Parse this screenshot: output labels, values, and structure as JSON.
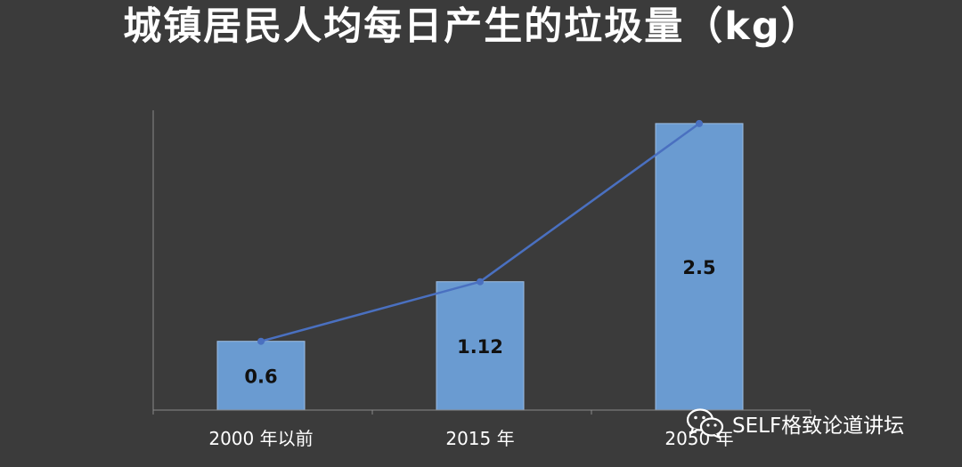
{
  "chart_data": {
    "type": "bar",
    "title": "城镇居民人均每日产生的垃圾量（kg）",
    "categories": [
      "2000 年以前",
      "2015 年",
      "2050 年"
    ],
    "values": [
      0.6,
      1.12,
      2.5
    ],
    "value_labels": [
      "0.6",
      "1.12",
      "2.5"
    ],
    "overlay_line": true,
    "ylim": [
      0,
      2.6
    ],
    "grid": false,
    "legend": "none",
    "colors": {
      "background": "#3b3b3b",
      "bar_fill": "#6a9bd1",
      "bar_stroke": "#9cbde3",
      "line": "#4a70c0",
      "axis": "#8a8a8a"
    }
  },
  "watermark": {
    "text": "SELF格致论道讲坛",
    "icon": "wechat-icon"
  }
}
